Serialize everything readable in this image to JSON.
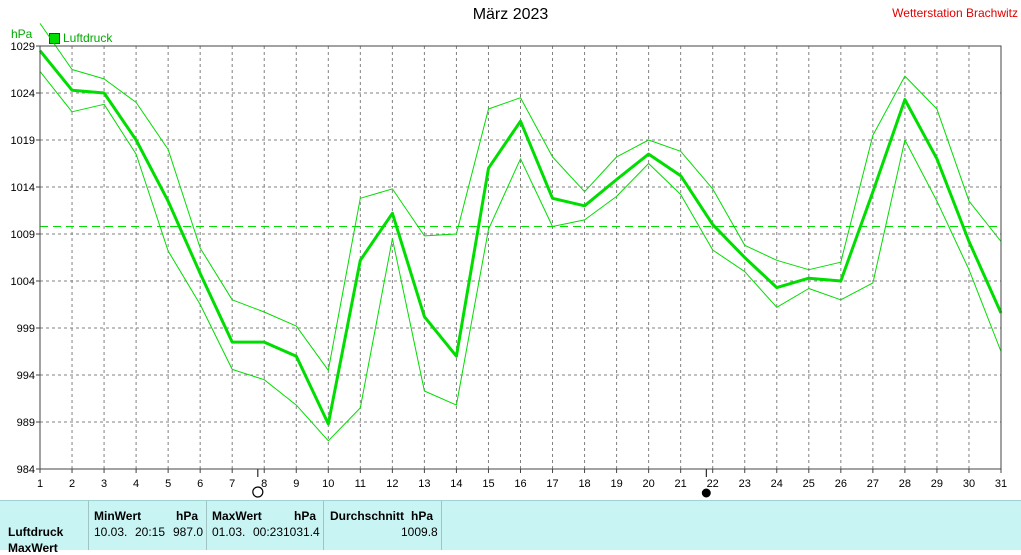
{
  "header": {
    "title": "März 2023",
    "station": "Wetterstation Brachwitz",
    "unit": "hPa"
  },
  "legend": {
    "label": "Luftdruck",
    "color": "#00dd00"
  },
  "chart_data": {
    "type": "line",
    "title": "März 2023",
    "ylabel": "hPa",
    "ylim": [
      984,
      1029
    ],
    "y_ticks": [
      984,
      989,
      994,
      999,
      1004,
      1009,
      1014,
      1019,
      1024,
      1029
    ],
    "x": [
      1,
      2,
      3,
      4,
      5,
      6,
      7,
      8,
      9,
      10,
      11,
      12,
      13,
      14,
      15,
      16,
      17,
      18,
      19,
      20,
      21,
      22,
      23,
      24,
      25,
      26,
      27,
      28,
      29,
      30,
      31
    ],
    "grid": true,
    "average_line": 1009.8,
    "series": [
      {
        "name": "Luftdruck",
        "role": "avg",
        "color": "#00dd00",
        "values": [
          1028.5,
          1024.3,
          1024.0,
          1019.0,
          1012.5,
          1004.8,
          997.5,
          997.5,
          996.0,
          988.8,
          1006.2,
          1011.2,
          1000.2,
          996.0,
          1016.0,
          1021.0,
          1012.8,
          1012.0,
          1014.8,
          1017.5,
          1015.2,
          1010.0,
          1006.5,
          1003.3,
          1004.3,
          1004.0,
          1013.5,
          1023.3,
          1017.0,
          1008.2,
          1000.6
        ]
      },
      {
        "role": "max",
        "color": "#00dd00",
        "values": [
          1031.4,
          1026.5,
          1025.5,
          1023.0,
          1018.0,
          1007.5,
          1002.0,
          1000.7,
          999.2,
          994.5,
          1012.8,
          1013.8,
          1008.8,
          1009.0,
          1022.3,
          1023.5,
          1017.2,
          1013.5,
          1017.2,
          1019.0,
          1017.8,
          1013.8,
          1007.8,
          1006.2,
          1005.2,
          1006.0,
          1019.5,
          1025.8,
          1022.3,
          1012.5,
          1008.2
        ]
      },
      {
        "role": "min",
        "color": "#00dd00",
        "values": [
          1026.3,
          1022.0,
          1022.8,
          1017.5,
          1007.2,
          1001.5,
          994.6,
          993.5,
          990.8,
          987.0,
          990.5,
          1008.5,
          992.3,
          990.8,
          1009.5,
          1017.0,
          1009.8,
          1010.5,
          1013.0,
          1016.5,
          1013.2,
          1007.3,
          1005.0,
          1001.2,
          1003.2,
          1002.0,
          1003.8,
          1019.0,
          1012.5,
          1005.2,
          996.5
        ]
      }
    ],
    "markers": [
      {
        "x": 7.8,
        "icon": "new-moon-icon"
      },
      {
        "x": 21.8,
        "icon": "full-moon-icon"
      }
    ]
  },
  "footer": {
    "rows": [
      "Luftdruck",
      "MaxWert"
    ],
    "min": {
      "head": "MinWert",
      "unit": "hPa",
      "date": "10.03.",
      "time": "20:15",
      "value": "987.0"
    },
    "max": {
      "head": "MaxWert",
      "unit": "hPa",
      "date": "01.03.",
      "time": "00:23",
      "value": "1031.4"
    },
    "avg": {
      "head": "Durchschnitt",
      "unit": "hPa",
      "value": "1009.8"
    }
  }
}
